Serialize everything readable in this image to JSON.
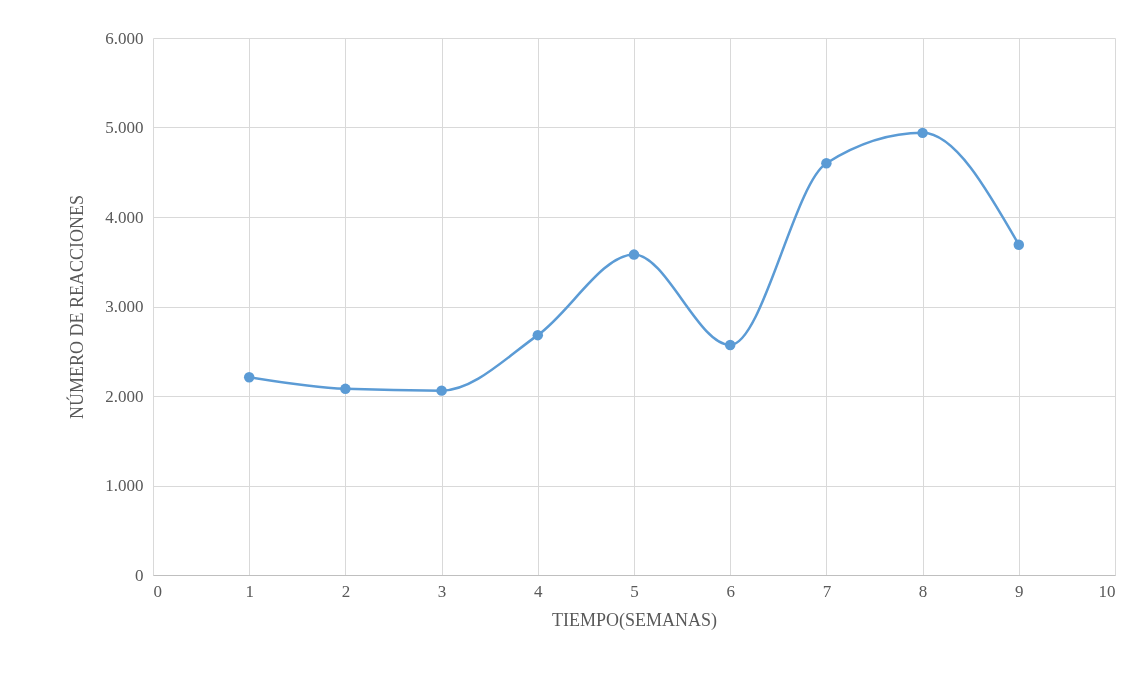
{
  "chart_data": {
    "type": "line",
    "xlabel": "TIEMPO(SEMANAS)",
    "ylabel": "NÚMERO  DE  REACCIONES",
    "x": [
      1,
      2,
      3,
      4,
      5,
      6,
      7,
      8,
      9
    ],
    "series": [
      {
        "color": "#5b9bd5",
        "values": [
          2210,
          2080,
          2060,
          2680,
          3580,
          2570,
          4600,
          4940,
          3690
        ]
      }
    ],
    "xlim": [
      0,
      10
    ],
    "xticks": [
      0,
      1,
      2,
      3,
      4,
      5,
      6,
      7,
      8,
      9,
      10
    ],
    "ylim": [
      0,
      6000
    ],
    "yticks": [
      0,
      {
        "value": 1000,
        "label": "1.000"
      },
      {
        "value": 2000,
        "label": "2.000"
      },
      {
        "value": 3000,
        "label": "3.000"
      },
      {
        "value": 4000,
        "label": "4.000"
      },
      {
        "value": 5000,
        "label": "5.000"
      },
      {
        "value": 6000,
        "label": "6.000"
      }
    ],
    "grid": true,
    "marker": "circle",
    "line_style": "solid"
  }
}
